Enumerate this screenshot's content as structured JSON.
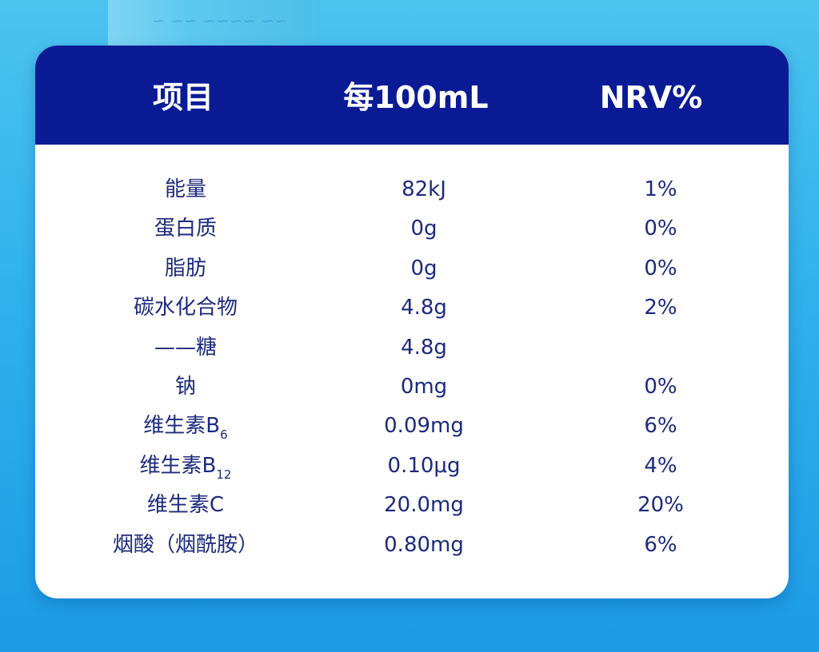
{
  "header": {
    "item": "项目",
    "per100ml": "每100mL",
    "nrv": "NRV%"
  },
  "rows": [
    {
      "name": "能量",
      "sub": "",
      "per100ml": "82kJ",
      "nrv": "1%"
    },
    {
      "name": "蛋白质",
      "sub": "",
      "per100ml": "0g",
      "nrv": "0%"
    },
    {
      "name": "脂肪",
      "sub": "",
      "per100ml": "0g",
      "nrv": "0%"
    },
    {
      "name": "碳水化合物",
      "sub": "",
      "per100ml": "4.8g",
      "nrv": "2%"
    },
    {
      "name": "——糖",
      "sub": "",
      "per100ml": "4.8g",
      "nrv": ""
    },
    {
      "name": "钠",
      "sub": "",
      "per100ml": "0mg",
      "nrv": "0%"
    },
    {
      "name": "维生素B",
      "sub": "6",
      "per100ml": "0.09mg",
      "nrv": "6%"
    },
    {
      "name": "维生素B",
      "sub": "12",
      "per100ml": "0.10μg",
      "nrv": "4%"
    },
    {
      "name": "维生素C",
      "sub": "",
      "per100ml": "20.0mg",
      "nrv": "20%"
    },
    {
      "name": "烟酸（烟酰胺）",
      "sub": "",
      "per100ml": "0.80mg",
      "nrv": "6%"
    }
  ]
}
